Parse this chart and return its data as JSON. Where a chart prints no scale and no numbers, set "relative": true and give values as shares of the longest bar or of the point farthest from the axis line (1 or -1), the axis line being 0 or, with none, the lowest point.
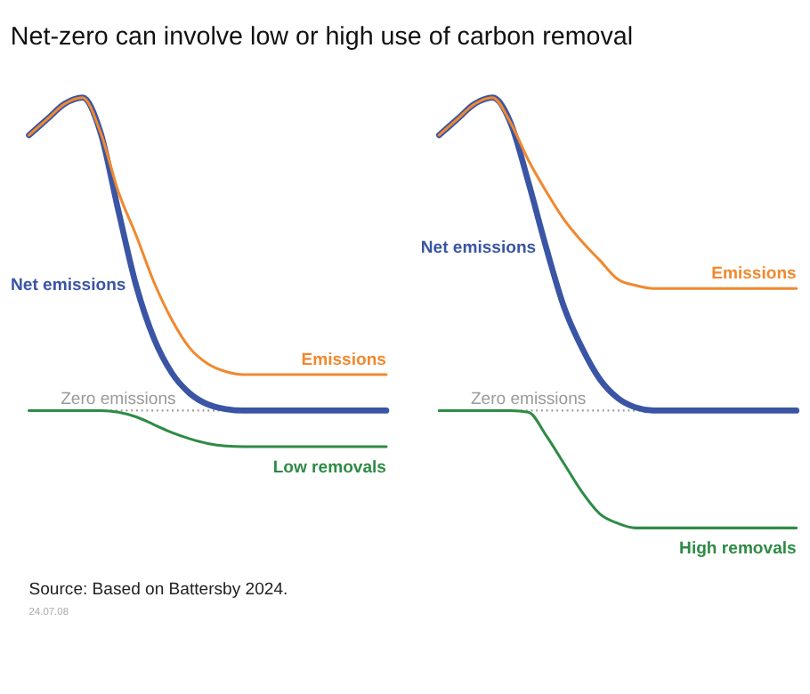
{
  "chart_data": [
    {
      "type": "line",
      "relative": true,
      "title": "Net-zero can involve low or high use of carbon removal",
      "annotations": [
        "Source: Based on Battersby 2024.",
        "24.07.08"
      ],
      "categories": [
        null,
        null,
        null,
        null,
        null,
        null,
        null,
        null,
        null,
        null,
        null,
        null,
        null,
        null,
        null,
        null,
        null,
        null,
        null,
        null,
        null
      ],
      "series": [
        {
          "name": "Net emissions",
          "color": "#3a55a4",
          "values": [
            0.88,
            0.93,
            0.98,
            1.0,
            0.89,
            0.64,
            0.4,
            0.23,
            0.12,
            0.055,
            0.02,
            0.005,
            0,
            0,
            0,
            0,
            0,
            0,
            0,
            0,
            0
          ]
        },
        {
          "name": "Emissions",
          "color": "#f0892f",
          "values": [
            0.88,
            0.93,
            0.98,
            1.0,
            0.89,
            0.7,
            0.56,
            0.41,
            0.29,
            0.2,
            0.15,
            0.125,
            0.115,
            0.115,
            0.115,
            0.115,
            0.115,
            0.115,
            0.115,
            0.115,
            0.115
          ]
        },
        {
          "name": "Low removals",
          "color": "#2e8b45",
          "values": [
            0,
            0,
            0,
            0,
            0,
            -0.005,
            -0.02,
            -0.045,
            -0.07,
            -0.09,
            -0.105,
            -0.113,
            -0.115,
            -0.115,
            -0.115,
            -0.115,
            -0.115,
            -0.115,
            -0.115,
            -0.115,
            -0.115
          ]
        }
      ],
      "ref_lines": [
        {
          "axis": "y",
          "value": 0,
          "label": "Zero emissions",
          "color": "#9a9a9a",
          "line_style": "dotted"
        }
      ]
    },
    {
      "type": "line",
      "relative": true,
      "categories": [
        null,
        null,
        null,
        null,
        null,
        null,
        null,
        null,
        null,
        null,
        null,
        null,
        null,
        null,
        null,
        null,
        null,
        null,
        null,
        null,
        null
      ],
      "series": [
        {
          "name": "Net emissions",
          "color": "#3a55a4",
          "values": [
            0.88,
            0.93,
            0.98,
            1.0,
            0.92,
            0.73,
            0.52,
            0.33,
            0.2,
            0.1,
            0.04,
            0.01,
            0,
            0,
            0,
            0,
            0,
            0,
            0,
            0,
            0
          ]
        },
        {
          "name": "Emissions",
          "color": "#f0892f",
          "values": [
            0.88,
            0.93,
            0.98,
            1.0,
            0.92,
            0.8,
            0.7,
            0.61,
            0.54,
            0.48,
            0.42,
            0.4,
            0.39,
            0.39,
            0.39,
            0.39,
            0.39,
            0.39,
            0.39,
            0.39,
            0.39
          ]
        },
        {
          "name": "High removals",
          "color": "#2e8b45",
          "values": [
            0,
            0,
            0,
            0,
            0,
            -0.005,
            -0.08,
            -0.17,
            -0.26,
            -0.33,
            -0.36,
            -0.375,
            -0.375,
            -0.375,
            -0.375,
            -0.375,
            -0.375,
            -0.375,
            -0.375,
            -0.375,
            -0.375
          ]
        }
      ],
      "ref_lines": [
        {
          "axis": "y",
          "value": 0,
          "label": "Zero emissions",
          "color": "#9a9a9a",
          "line_style": "dotted"
        }
      ]
    }
  ]
}
